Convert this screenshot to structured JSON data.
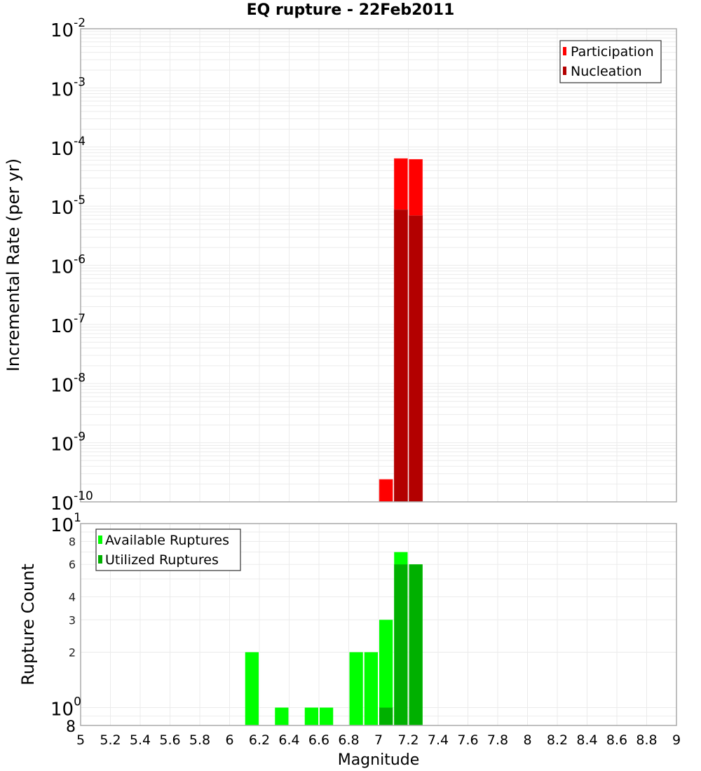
{
  "chart_data": [
    {
      "type": "bar",
      "title": "EQ rupture - 22Feb2011",
      "xlabel": "Magnitude",
      "ylabel": "Incremental Rate (per yr)",
      "yscale": "log",
      "ylim": [
        1e-10,
        0.01
      ],
      "xlim": [
        5,
        9
      ],
      "grid": true,
      "legend_position": "top-right",
      "y_ticks": [
        "10^-2",
        "10^-3",
        "10^-4",
        "10^-5",
        "10^-6",
        "10^-7",
        "10^-8",
        "10^-9",
        "10^-10"
      ],
      "series": [
        {
          "name": "Participation",
          "color": "#ff0000",
          "x": [
            7.05,
            7.15,
            7.25
          ],
          "values": [
            2.4e-10,
            6.4e-05,
            6.2e-05
          ]
        },
        {
          "name": "Nucleation",
          "color": "#b30000",
          "x": [
            7.15,
            7.25
          ],
          "values": [
            8.7e-06,
            6.9e-06
          ]
        }
      ]
    },
    {
      "type": "bar",
      "title": "",
      "xlabel": "Magnitude",
      "ylabel": "Rupture Count",
      "yscale": "log",
      "ylim": [
        0.8,
        10
      ],
      "xlim": [
        5,
        9
      ],
      "grid": true,
      "legend_position": "top-left",
      "y_ticks": [
        "10^1",
        "8",
        "6",
        "4",
        "3",
        "2",
        "10^0",
        "8"
      ],
      "x_ticks": [
        "5",
        "5.2",
        "5.4",
        "5.6",
        "5.8",
        "6",
        "6.2",
        "6.4",
        "6.6",
        "6.8",
        "7",
        "7.2",
        "7.4",
        "7.6",
        "7.8",
        "8",
        "8.2",
        "8.4",
        "8.6",
        "8.8",
        "9"
      ],
      "series": [
        {
          "name": "Available Ruptures",
          "color": "#00ff00",
          "x": [
            6.15,
            6.35,
            6.55,
            6.65,
            6.85,
            6.95,
            7.05,
            7.15,
            7.25
          ],
          "values": [
            2,
            1,
            1,
            1,
            2,
            2,
            3,
            7,
            6
          ]
        },
        {
          "name": "Utilized Ruptures",
          "color": "#00b000",
          "x": [
            7.05,
            7.15,
            7.25
          ],
          "values": [
            1,
            6,
            6
          ]
        }
      ]
    }
  ],
  "title": "EQ rupture - 22Feb2011",
  "top": {
    "ylabel": "Incremental Rate (per yr)",
    "legend": [
      "Participation",
      "Nucleation"
    ]
  },
  "bottom": {
    "ylabel": "Rupture Count",
    "xlabel": "Magnitude",
    "legend": [
      "Available Ruptures",
      "Utilized Ruptures"
    ]
  }
}
